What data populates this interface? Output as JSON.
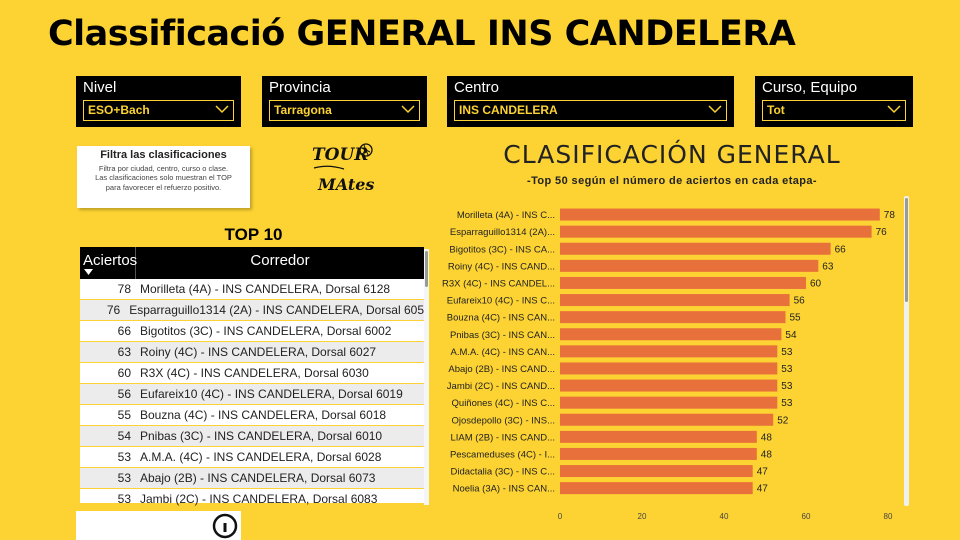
{
  "page": {
    "title": "Classificació GENERAL INS CANDELERA"
  },
  "filters": [
    {
      "label": "Nivel",
      "value": "ESO+Bach"
    },
    {
      "label": "Provincia",
      "value": "Tarragona"
    },
    {
      "label": "Centro",
      "value": "INS CANDELERA"
    },
    {
      "label": "Curso, Equipo",
      "value": "Tot"
    }
  ],
  "info_card": {
    "title": "Filtra las clasificaciones",
    "lines": [
      "Filtra por ciudad, centro, curso o clase.",
      "Las clasificaciones solo muestran el TOP",
      "para favorecer el refuerzo positivo."
    ]
  },
  "logo": {
    "text_top": "TOUR",
    "text_bottom": "MAtes"
  },
  "top10": {
    "title": "TOP 10",
    "columns": {
      "hits": "Aciertos",
      "runner": "Corredor"
    },
    "rows": [
      {
        "hits": "78",
        "runner": "Morilleta (4A) - INS CANDELERA, Dorsal 6128"
      },
      {
        "hits": "76",
        "runner": "Esparraguillo1314 (2A) - INS CANDELERA, Dorsal 605"
      },
      {
        "hits": "66",
        "runner": "Bigotitos (3C) - INS CANDELERA, Dorsal 6002"
      },
      {
        "hits": "63",
        "runner": "Roiny (4C) - INS CANDELERA, Dorsal 6027"
      },
      {
        "hits": "60",
        "runner": "R3X (4C) - INS CANDELERA, Dorsal 6030"
      },
      {
        "hits": "56",
        "runner": "Eufareix10 (4C) - INS CANDELERA, Dorsal 6019"
      },
      {
        "hits": "55",
        "runner": "Bouzna (4C) - INS CANDELERA, Dorsal 6018"
      },
      {
        "hits": "54",
        "runner": "Pnibas (3C) - INS CANDELERA, Dorsal 6010"
      },
      {
        "hits": "53",
        "runner": "A.M.A. (4C) - INS CANDELERA, Dorsal 6028"
      },
      {
        "hits": "53",
        "runner": "Abajo (2B) - INS CANDELERA, Dorsal 6073"
      },
      {
        "hits": "53",
        "runner": "Jambi (2C) - INS CANDELERA, Dorsal 6083"
      }
    ]
  },
  "colors": {
    "background": "#fdd333",
    "bar": "#e8703a",
    "header": "#000000"
  },
  "chart_data": {
    "type": "bar",
    "orientation": "horizontal",
    "title": "CLASIFICACIÓN GENERAL",
    "subtitle": "-Top 50 según el número de aciertos en cada etapa-",
    "categories": [
      "Morilleta (4A) - INS C...",
      "Esparraguillo1314 (2A)...",
      "Bigotitos (3C) - INS CA...",
      "Roiny (4C) - INS CAND...",
      "R3X (4C) - INS CANDEL...",
      "Eufareix10 (4C) - INS C...",
      "Bouzna (4C) - INS CAN...",
      "Pnibas (3C) - INS CAN...",
      "A.M.A. (4C) - INS CAN...",
      "Abajo (2B) - INS CAND...",
      "Jambi (2C) - INS CAND...",
      "Quiñones (4C) - INS C...",
      "Ojosdepollo (3C) - INS...",
      "LIAM (2B) - INS CAND...",
      "Pescameduses (4C) - I...",
      "Didactalia (3C) - INS C...",
      "Noelia (3A) - INS CAN..."
    ],
    "values": [
      78,
      76,
      66,
      63,
      60,
      56,
      55,
      54,
      53,
      53,
      53,
      53,
      52,
      48,
      48,
      47,
      47
    ],
    "xlim": [
      0,
      80
    ],
    "xticks": [
      0,
      20,
      40,
      60,
      80
    ],
    "grid": false,
    "data_labels": true
  }
}
